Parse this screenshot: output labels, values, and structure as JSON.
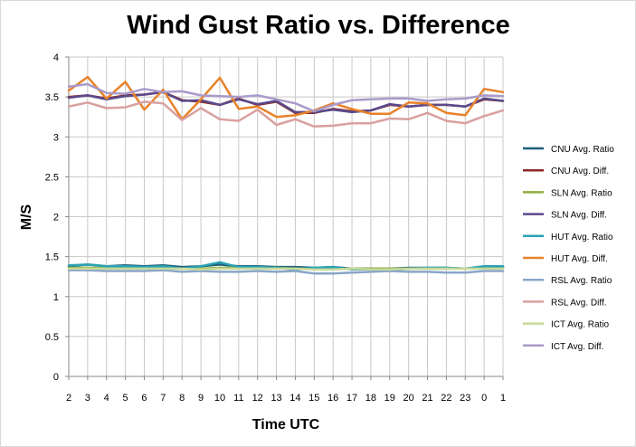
{
  "chart_data": {
    "type": "line",
    "title": "Wind Gust Ratio vs. Difference",
    "xlabel": "Time UTC",
    "ylabel": "M/S",
    "ylim": [
      0,
      4
    ],
    "yticks": [
      "0",
      "0.5",
      "1",
      "1.5",
      "2",
      "2.5",
      "3",
      "3.5",
      "4"
    ],
    "categories": [
      "2",
      "3",
      "4",
      "5",
      "6",
      "7",
      "8",
      "9",
      "10",
      "11",
      "12",
      "13",
      "14",
      "15",
      "16",
      "17",
      "18",
      "19",
      "20",
      "21",
      "22",
      "23",
      "0",
      "1"
    ],
    "grid": true,
    "legend_position": "right",
    "series": [
      {
        "name": "CNU Avg. Ratio",
        "color": "#1f5f7a",
        "values": [
          1.38,
          1.4,
          1.38,
          1.39,
          1.38,
          1.39,
          1.37,
          1.38,
          1.4,
          1.38,
          1.38,
          1.37,
          1.37,
          1.36,
          1.37,
          1.35,
          1.35,
          1.35,
          1.36,
          1.36,
          1.36,
          1.35,
          1.37,
          1.37
        ]
      },
      {
        "name": "CNU Avg. Diff.",
        "color": "#8b2a2a",
        "values": [
          3.5,
          3.52,
          3.48,
          3.52,
          3.53,
          3.56,
          3.46,
          3.44,
          3.4,
          3.48,
          3.4,
          3.44,
          3.3,
          3.3,
          3.35,
          3.32,
          3.33,
          3.4,
          3.38,
          3.4,
          3.4,
          3.38,
          3.47,
          3.45
        ]
      },
      {
        "name": "SLN Avg. Ratio",
        "color": "#8fae3c",
        "values": [
          1.36,
          1.36,
          1.36,
          1.36,
          1.36,
          1.36,
          1.35,
          1.35,
          1.36,
          1.36,
          1.36,
          1.36,
          1.35,
          1.35,
          1.35,
          1.35,
          1.35,
          1.35,
          1.35,
          1.35,
          1.35,
          1.35,
          1.36,
          1.36
        ]
      },
      {
        "name": "SLN Avg. Diff.",
        "color": "#5b4a8b",
        "values": [
          3.49,
          3.52,
          3.47,
          3.51,
          3.53,
          3.56,
          3.45,
          3.46,
          3.4,
          3.47,
          3.41,
          3.45,
          3.31,
          3.31,
          3.34,
          3.31,
          3.33,
          3.41,
          3.38,
          3.4,
          3.4,
          3.38,
          3.48,
          3.45
        ]
      },
      {
        "name": "HUT Avg. Ratio",
        "color": "#2aa3b3",
        "values": [
          1.39,
          1.4,
          1.38,
          1.38,
          1.37,
          1.38,
          1.35,
          1.38,
          1.43,
          1.37,
          1.37,
          1.36,
          1.34,
          1.36,
          1.37,
          1.34,
          1.34,
          1.33,
          1.35,
          1.36,
          1.36,
          1.35,
          1.38,
          1.38
        ]
      },
      {
        "name": "HUT Avg. Diff.",
        "color": "#e8822a",
        "values": [
          3.58,
          3.75,
          3.48,
          3.69,
          3.34,
          3.59,
          3.22,
          3.47,
          3.74,
          3.35,
          3.38,
          3.25,
          3.27,
          3.33,
          3.42,
          3.35,
          3.29,
          3.29,
          3.43,
          3.42,
          3.3,
          3.27,
          3.6,
          3.56
        ]
      },
      {
        "name": "RSL Avg. Ratio",
        "color": "#8aa6c8",
        "values": [
          1.33,
          1.33,
          1.32,
          1.32,
          1.32,
          1.33,
          1.31,
          1.32,
          1.31,
          1.31,
          1.32,
          1.31,
          1.32,
          1.29,
          1.29,
          1.3,
          1.31,
          1.32,
          1.31,
          1.31,
          1.3,
          1.3,
          1.32,
          1.32
        ]
      },
      {
        "name": "RSL Avg. Diff.",
        "color": "#d9a0a0",
        "values": [
          3.38,
          3.43,
          3.36,
          3.37,
          3.44,
          3.42,
          3.21,
          3.36,
          3.22,
          3.2,
          3.34,
          3.15,
          3.22,
          3.13,
          3.14,
          3.17,
          3.17,
          3.23,
          3.22,
          3.3,
          3.2,
          3.17,
          3.26,
          3.33
        ]
      },
      {
        "name": "ICT Avg. Ratio",
        "color": "#c8d99a",
        "values": [
          1.35,
          1.35,
          1.35,
          1.35,
          1.35,
          1.35,
          1.35,
          1.34,
          1.35,
          1.35,
          1.35,
          1.35,
          1.35,
          1.34,
          1.34,
          1.35,
          1.34,
          1.34,
          1.35,
          1.35,
          1.35,
          1.35,
          1.35,
          1.35
        ]
      },
      {
        "name": "ICT Avg. Diff.",
        "color": "#a99bc9",
        "values": [
          3.63,
          3.66,
          3.55,
          3.54,
          3.6,
          3.56,
          3.57,
          3.52,
          3.51,
          3.5,
          3.52,
          3.47,
          3.42,
          3.32,
          3.4,
          3.46,
          3.47,
          3.48,
          3.48,
          3.45,
          3.47,
          3.48,
          3.52,
          3.51
        ]
      }
    ]
  }
}
